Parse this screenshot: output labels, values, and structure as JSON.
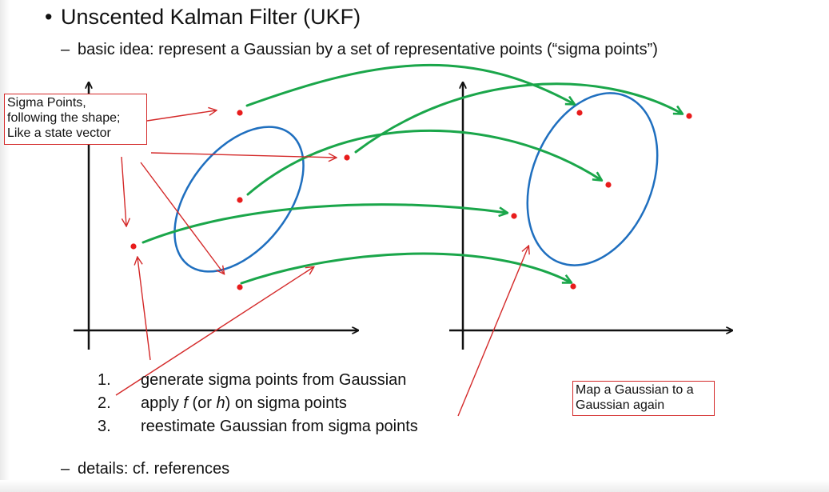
{
  "title": "Unscented Kalman Filter (UKF)",
  "bullet": "•",
  "dash": "–",
  "subtitle": "basic idea: represent a Gaussian by a set of representative points (“sigma points”)",
  "steps": [
    {
      "num": "1.",
      "pre": "generate sigma points from Gaussian",
      "italic1": "",
      "mid": "",
      "italic2": "",
      "post": ""
    },
    {
      "num": "2.",
      "pre": "apply ",
      "italic1": "f",
      "mid": " (or ",
      "italic2": "h",
      "post": ") on sigma points"
    },
    {
      "num": "3.",
      "pre": "reestimate Gaussian from sigma points",
      "italic1": "",
      "mid": "",
      "italic2": "",
      "post": ""
    }
  ],
  "details": "details: cf. references",
  "callout_sigma": {
    "lines": [
      "Sigma Points,",
      "following the shape;",
      "Like a state vector"
    ]
  },
  "callout_map": {
    "lines": [
      "Map a Gaussian to a",
      "Gaussian again"
    ]
  },
  "colors": {
    "point": "#e81c1c",
    "mapping_arrow": "#1aa64a",
    "ellipse": "#1f6fbf",
    "annotation": "#d42a2a",
    "axis": "#111111"
  }
}
